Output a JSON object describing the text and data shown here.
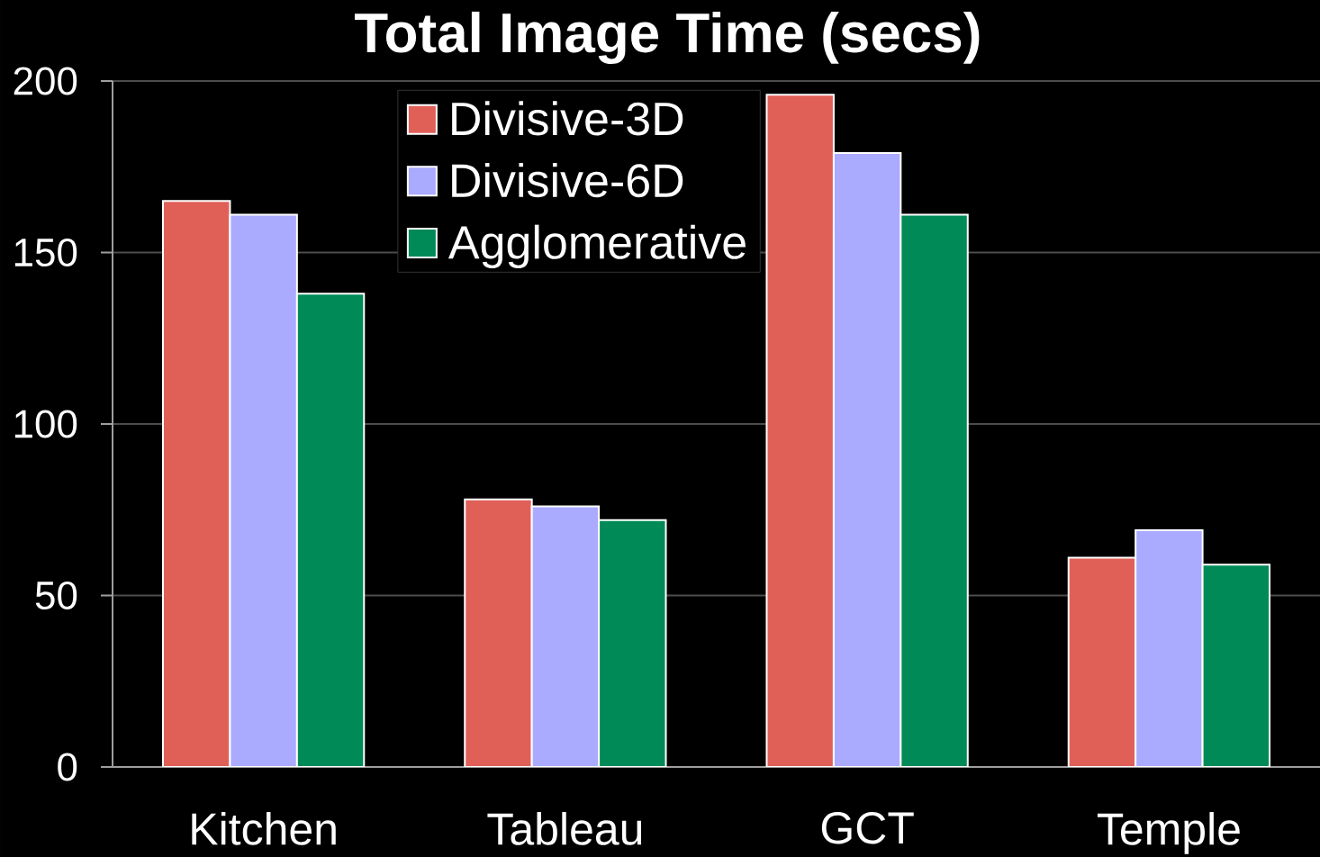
{
  "chart_data": {
    "type": "bar",
    "title": "Total Image Time (secs)",
    "categories": [
      "Kitchen",
      "Tableau",
      "GCT",
      "Temple"
    ],
    "series": [
      {
        "name": "Divisive-3D",
        "color": "#e06058",
        "values": [
          165,
          78,
          196,
          61
        ]
      },
      {
        "name": "Divisive-6D",
        "color": "#aaaaff",
        "values": [
          161,
          76,
          179,
          69
        ]
      },
      {
        "name": "Agglomerative",
        "color": "#008a58",
        "values": [
          138,
          72,
          161,
          59
        ]
      }
    ],
    "ylim": [
      0,
      200
    ],
    "yticks": [
      0,
      50,
      100,
      150,
      200
    ],
    "grid": "y",
    "legend": "top left"
  }
}
